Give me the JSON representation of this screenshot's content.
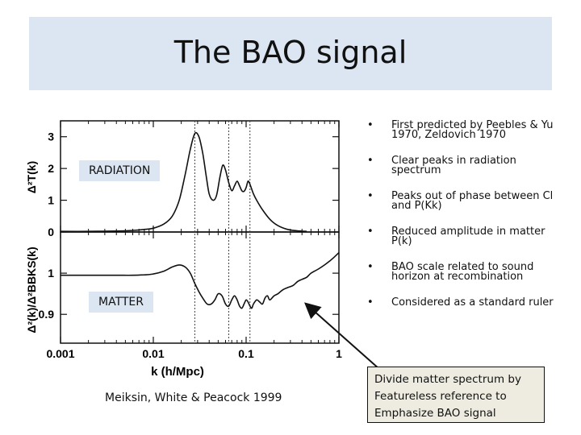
{
  "slide": {
    "title": "The BAO signal"
  },
  "figure": {
    "labels": {
      "radiation": "RADIATION",
      "matter": "MATTER"
    },
    "citation": "Meiksin, White & Peacock 1999"
  },
  "bullets": [
    {
      "text": "First predicted by Peebles & Yu 1970, Zeldovich 1970"
    },
    {
      "text": "Clear peaks in radiation spectrum"
    },
    {
      "text": "Peaks out of phase between Cl and P(Kk)"
    },
    {
      "text": "Reduced amplitude in matter P(k)"
    },
    {
      "text": "BAO scale related to sound horizon at recombination"
    },
    {
      "text": "Considered as a standard ruler"
    }
  ],
  "callout": {
    "text": "Divide matter spectrum by Featureless reference to Emphasize BAO signal"
  },
  "colors": {
    "title_band": "#dce6f2",
    "callout_fill": "#eeece1"
  },
  "chart_data": {
    "type": "line",
    "xscale": "log",
    "xlim": [
      0.001,
      1
    ],
    "xlabel": "k (h/Mpc)",
    "xticks": [
      "0.001",
      "0.01",
      "0.1",
      "1"
    ],
    "vlines": [
      0.028,
      0.065,
      0.11
    ],
    "panels": [
      {
        "ylabel": "Δ²T(k)",
        "ylim": [
          0,
          3.5
        ],
        "yticks": [
          "0",
          "1",
          "2",
          "3"
        ],
        "x": [
          0.001,
          0.002,
          0.004,
          0.006,
          0.008,
          0.01,
          0.013,
          0.016,
          0.019,
          0.022,
          0.025,
          0.028,
          0.031,
          0.034,
          0.037,
          0.04,
          0.044,
          0.048,
          0.052,
          0.056,
          0.06,
          0.065,
          0.07,
          0.075,
          0.08,
          0.085,
          0.09,
          0.095,
          0.1,
          0.105,
          0.11,
          0.12,
          0.13,
          0.15,
          0.18,
          0.22,
          0.28,
          0.35,
          0.45
        ],
        "y": [
          0.02,
          0.02,
          0.03,
          0.05,
          0.08,
          0.12,
          0.25,
          0.5,
          1.0,
          1.8,
          2.6,
          3.1,
          3.0,
          2.5,
          1.8,
          1.2,
          1.0,
          1.15,
          1.7,
          2.1,
          1.95,
          1.55,
          1.3,
          1.45,
          1.6,
          1.45,
          1.3,
          1.28,
          1.4,
          1.6,
          1.5,
          1.2,
          1.0,
          0.7,
          0.4,
          0.2,
          0.08,
          0.04,
          0.02
        ]
      },
      {
        "ylabel": "Δ²(k)/Δ²BBKS(k)",
        "ylim": [
          0.83,
          1.1
        ],
        "yticks": [
          "0.9",
          "1"
        ],
        "x": [
          0.001,
          0.002,
          0.004,
          0.006,
          0.008,
          0.01,
          0.013,
          0.016,
          0.019,
          0.022,
          0.025,
          0.028,
          0.031,
          0.034,
          0.038,
          0.042,
          0.046,
          0.05,
          0.055,
          0.06,
          0.065,
          0.07,
          0.075,
          0.08,
          0.085,
          0.09,
          0.095,
          0.1,
          0.105,
          0.11,
          0.115,
          0.12,
          0.13,
          0.14,
          0.15,
          0.16,
          0.17,
          0.18,
          0.2,
          0.22,
          0.25,
          0.28,
          0.32,
          0.36,
          0.4,
          0.45,
          0.5,
          0.6,
          0.7,
          0.8,
          0.9,
          1.0
        ],
        "y": [
          0.995,
          0.995,
          0.995,
          0.995,
          0.996,
          0.998,
          1.005,
          1.015,
          1.02,
          1.015,
          1.0,
          0.975,
          0.955,
          0.94,
          0.925,
          0.925,
          0.935,
          0.95,
          0.945,
          0.925,
          0.92,
          0.935,
          0.945,
          0.935,
          0.92,
          0.915,
          0.925,
          0.935,
          0.93,
          0.92,
          0.915,
          0.925,
          0.935,
          0.93,
          0.925,
          0.94,
          0.945,
          0.935,
          0.945,
          0.95,
          0.96,
          0.965,
          0.97,
          0.98,
          0.985,
          0.99,
          1.0,
          1.01,
          1.02,
          1.03,
          1.04,
          1.05
        ]
      }
    ]
  }
}
